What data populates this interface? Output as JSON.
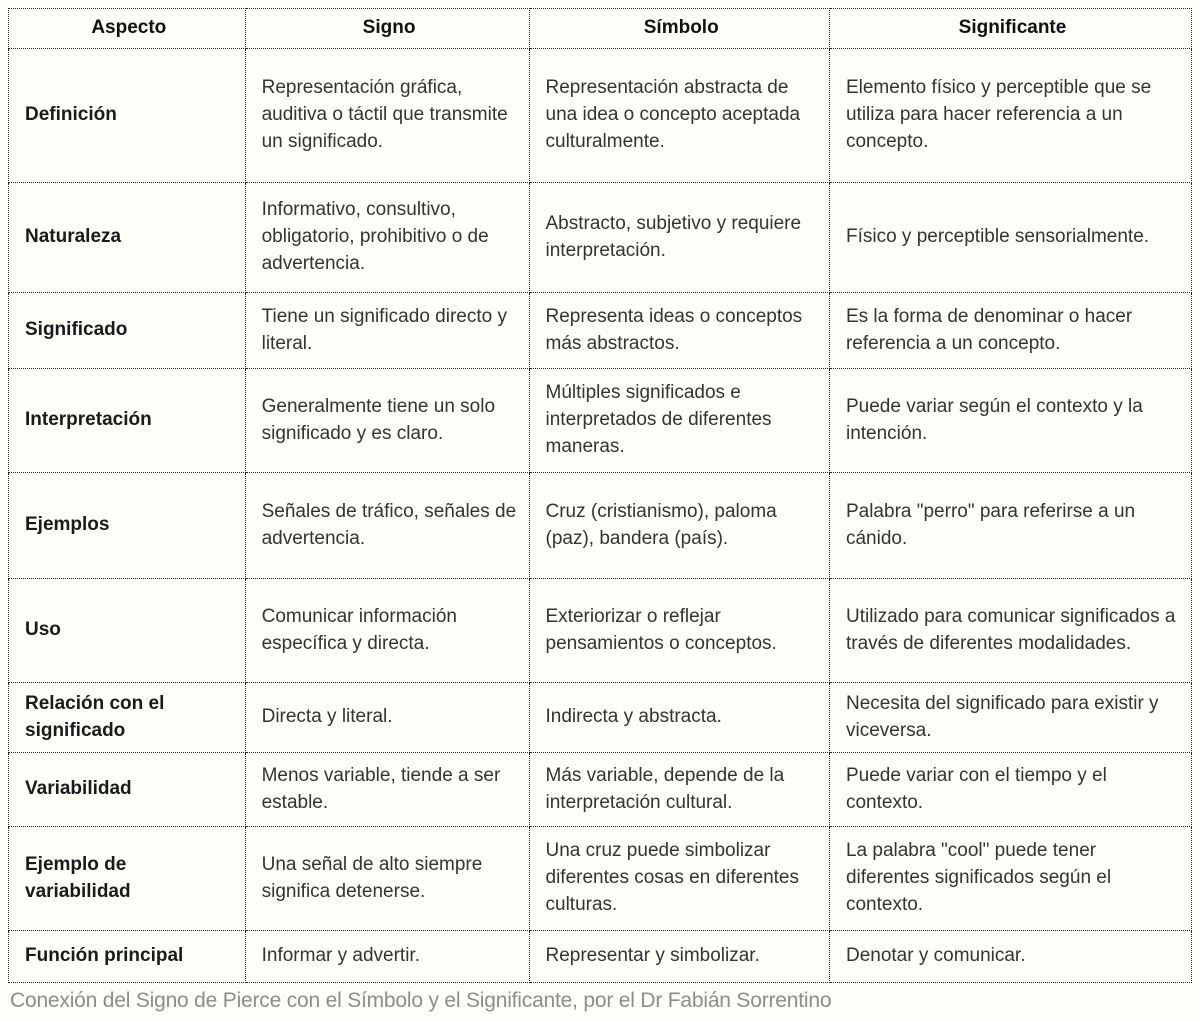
{
  "colors": {
    "background": "#fffefb",
    "border": "#222222",
    "body_text": "#333333",
    "heading_text": "#111111",
    "caption_text": "#8c8c8c"
  },
  "table": {
    "headers": [
      "Aspecto",
      "Signo",
      "Símbolo",
      "Significante"
    ],
    "rows": [
      {
        "aspect": "Definición",
        "signo": "Representación gráfica, auditiva o táctil que transmite un significado.",
        "simbolo": "Representación abstracta de una idea o concepto aceptada culturalmente.",
        "significante": "Elemento físico y perceptible que se utiliza para hacer referencia a un concepto."
      },
      {
        "aspect": "Naturaleza",
        "signo": "Informativo, consultivo, obligatorio, prohibitivo o de advertencia.",
        "simbolo": "Abstracto, subjetivo y requiere interpretación.",
        "significante": "Físico y perceptible sensorialmente."
      },
      {
        "aspect": "Significado",
        "signo": "Tiene un significado directo y literal.",
        "simbolo": "Representa ideas o conceptos más abstractos.",
        "significante": "Es la forma de denominar o hacer referencia a un concepto."
      },
      {
        "aspect": "Interpretación",
        "signo": "Generalmente tiene un solo significado y es claro.",
        "simbolo": "Múltiples significados e interpretados de diferentes maneras.",
        "significante": "Puede variar según el contexto y la intención."
      },
      {
        "aspect": "Ejemplos",
        "signo": "Señales de tráfico, señales de advertencia.",
        "simbolo": "Cruz (cristianismo), paloma (paz), bandera (país).",
        "significante": "Palabra \"perro\" para referirse a un cánido."
      },
      {
        "aspect": "Uso",
        "signo": "Comunicar información específica y directa.",
        "simbolo": "Exteriorizar o reflejar pensamientos o conceptos.",
        "significante": "Utilizado para comunicar significados a través de diferentes modalidades."
      },
      {
        "aspect": "Relación con el significado",
        "signo": "Directa y literal.",
        "simbolo": "Indirecta y abstracta.",
        "significante": "Necesita del significado para existir y viceversa."
      },
      {
        "aspect": "Variabilidad",
        "signo": "Menos variable, tiende a ser estable.",
        "simbolo": "Más variable, depende de la interpretación cultural.",
        "significante": "Puede variar con el tiempo y el contexto."
      },
      {
        "aspect": "Ejemplo de variabilidad",
        "signo": "Una señal de alto siempre significa detenerse.",
        "simbolo": "Una cruz puede simbolizar diferentes cosas en diferentes culturas.",
        "significante": "La palabra \"cool\" puede tener diferentes significados según el contexto."
      },
      {
        "aspect": "Función principal",
        "signo": "Informar y advertir.",
        "simbolo": "Representar y simbolizar.",
        "significante": "Denotar y comunicar."
      }
    ]
  },
  "caption": "Conexión del Signo de Pierce con el Símbolo y el Significante, por el Dr Fabián Sorrentino"
}
